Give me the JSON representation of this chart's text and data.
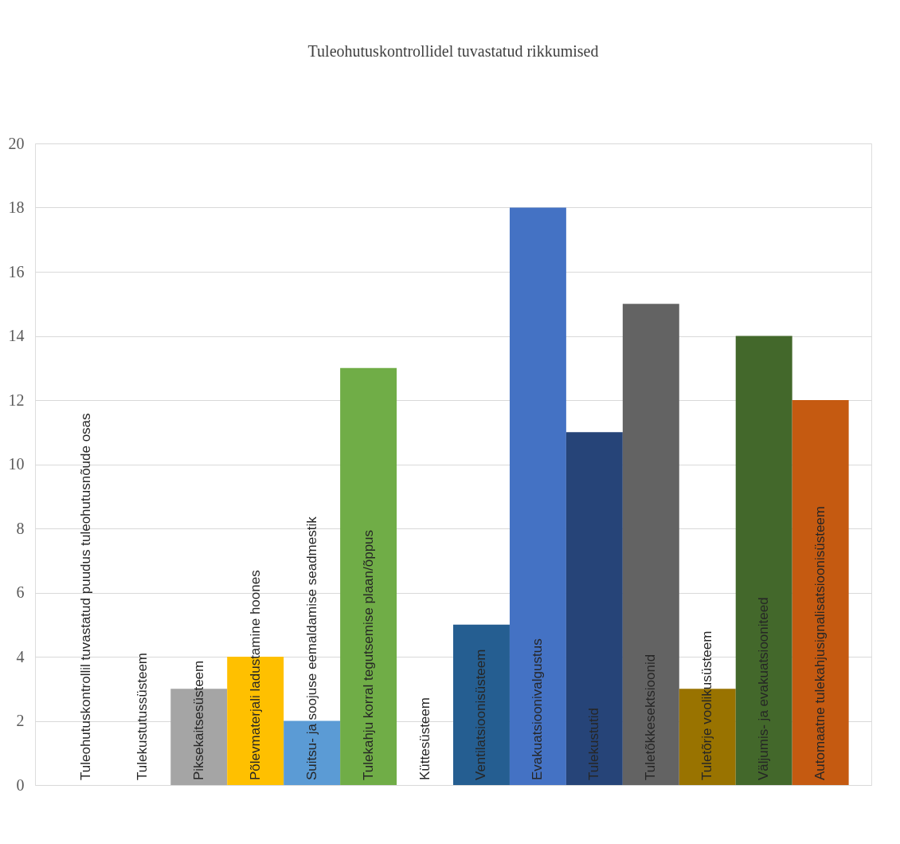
{
  "chart_data": {
    "type": "bar",
    "title": "Tuleohutuskontrollidel tuvastatud rikkumised",
    "categories": [
      "Tuleohutuskontrollil tuvastatud puudus tuleohutusnõude osas",
      "Tulekustutussüsteem",
      "Piksekaitsesüsteem",
      "Põlevmaterjali ladustamine hoones",
      "Suitsu- ja soojuse eemaldamise seadmestik",
      "Tulekahju korral tegutsemise plaan/õppus",
      "Küttesüsteem",
      "Ventilatsioonisüsteem",
      "Evakuatsioonivalgustus",
      "Tulekustutid",
      "Tuletõkkesektsioonid",
      "Tuletõrje voolikusüsteem",
      "Väljumis- ja evakuatsiooniteed",
      "Automaatne tulekahjusignalisatsioonisüsteem"
    ],
    "values": [
      0,
      0,
      3,
      4,
      2,
      13,
      0,
      5,
      18,
      11,
      15,
      3,
      14,
      12
    ],
    "colors": [
      "#4472c4",
      "#ed7d31",
      "#a5a5a5",
      "#ffc000",
      "#5b9bd5",
      "#70ad47",
      "#9e480e",
      "#255e91",
      "#4472c4",
      "#264478",
      "#636363",
      "#997300",
      "#43682b",
      "#c55a11"
    ],
    "ylim": [
      0,
      20
    ],
    "yticks": [
      0,
      2,
      4,
      6,
      8,
      10,
      12,
      14,
      16,
      18,
      20
    ],
    "grid": "y"
  }
}
